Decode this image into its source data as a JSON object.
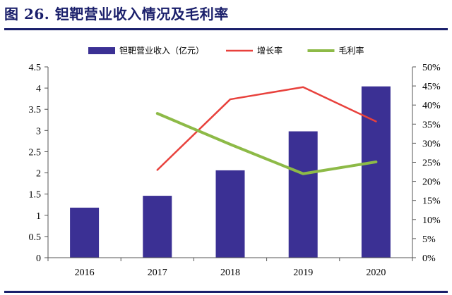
{
  "figure": {
    "title": "图 26. 钽靶营业收入情况及毛利率"
  },
  "chart_data": {
    "type": "bar",
    "categories": [
      "2016",
      "2017",
      "2018",
      "2019",
      "2020"
    ],
    "series": [
      {
        "name": "钽靶营业收入（亿元）",
        "type": "bar",
        "axis": "left",
        "values": [
          1.18,
          1.46,
          2.06,
          2.98,
          4.04
        ],
        "color": "#3b3094"
      },
      {
        "name": "增长率",
        "type": "line",
        "axis": "right",
        "values": [
          null,
          0.23,
          0.415,
          0.447,
          0.357
        ],
        "color": "#e8413c"
      },
      {
        "name": "毛利率",
        "type": "line",
        "axis": "right",
        "values": [
          null,
          0.378,
          0.297,
          0.22,
          0.251
        ],
        "color": "#8dba47"
      }
    ],
    "y_left": {
      "min": 0,
      "max": 4.5,
      "ticks": [
        "0",
        "0.5",
        "1",
        "1.5",
        "2",
        "2.5",
        "3",
        "3.5",
        "4",
        "4.5"
      ]
    },
    "y_right": {
      "min": 0,
      "max": 0.5,
      "ticks": [
        "0%",
        "5%",
        "10%",
        "15%",
        "20%",
        "25%",
        "30%",
        "35%",
        "40%",
        "45%",
        "50%"
      ]
    },
    "grid": false,
    "legend_position": "top"
  }
}
